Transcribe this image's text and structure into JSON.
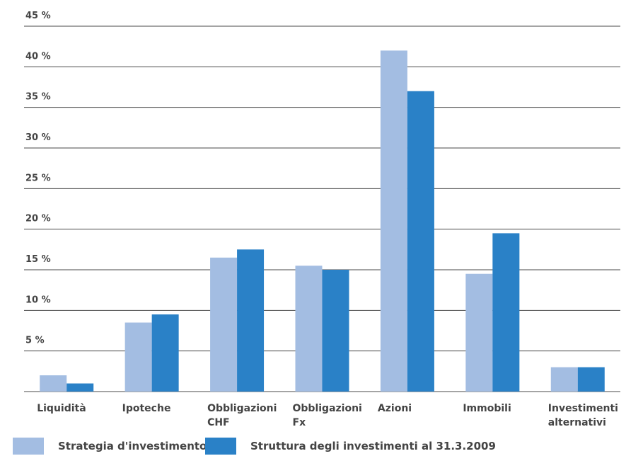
{
  "chart_data": {
    "type": "bar",
    "categories": [
      [
        "Liquidità"
      ],
      [
        "Ipoteche"
      ],
      [
        "Obbligazioni",
        "CHF"
      ],
      [
        "Obbligazioni",
        "Fx"
      ],
      [
        "Azioni"
      ],
      [
        "Immobili"
      ],
      [
        "Investimenti",
        "alternativi"
      ]
    ],
    "series": [
      {
        "name": "Strategia d'investimento",
        "color": "#a3bde2",
        "values": [
          2,
          8.5,
          16.5,
          15.5,
          42,
          14.5,
          3
        ]
      },
      {
        "name": "Struttura degli investimenti al 31.3.2009",
        "color": "#2a81c7",
        "values": [
          1,
          9.5,
          17.5,
          15,
          37,
          19.5,
          3
        ]
      }
    ],
    "y_ticks": [
      "5 %",
      "10 %",
      "15 %",
      "20 %",
      "25 %",
      "30 %",
      "35 %",
      "40 %",
      "45 %"
    ],
    "ylim": [
      0,
      45
    ],
    "grid": true,
    "legend_position": "bottom"
  }
}
